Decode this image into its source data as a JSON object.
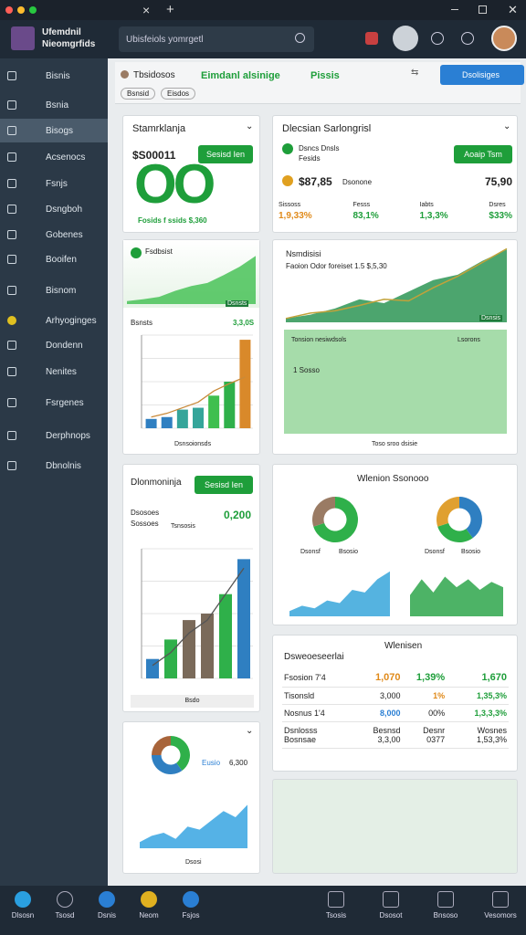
{
  "window": {
    "close": "×",
    "new_tab": "+"
  },
  "header": {
    "app_name_1": "Ufemdnil",
    "app_name_2": "Nieomgrfids",
    "search": "Ubisfeiols yomrgetl"
  },
  "sidebar": {
    "items": [
      "Bisnis",
      "Bsnia",
      "Bisogs",
      "Acsenocs",
      "Fsnjs",
      "Dsngboh",
      "Gobenes",
      "Booifen",
      "Bisnom",
      "Arhyoginges",
      "Dondenn",
      "Nenites",
      "Fsrgenes",
      "Derphnops",
      "Dbnolnis"
    ]
  },
  "toolbar": {
    "tabs": [
      "Tbsidosos",
      "Eimdanl alsinige",
      "Pissis"
    ],
    "chips": [
      "Bsnsid",
      "Eisdos"
    ],
    "button": "Dsolisiges"
  },
  "card_a": {
    "title": "Stamrklanja",
    "amount": "$S00011",
    "button": "Sesisd Ien",
    "big": "OO",
    "footer": "Fosids f ssids $,360"
  },
  "card_b": {
    "title": "Dlecsian Sarlongrisl",
    "line_1": "Dsncs Dnsls",
    "line_1b": "Fesids",
    "button": "Aoaip Tsm",
    "amount": "$87,85",
    "amount_label": "Dsonone",
    "amount_right": "75,90",
    "stats": [
      {
        "label": "Sissoss",
        "value": "1,9,33%"
      },
      {
        "label": "Fesss",
        "value": "83,1%"
      },
      {
        "label": "Iabts",
        "value": "1,3,3%"
      },
      {
        "label": "Dsres",
        "value": "$33%"
      }
    ]
  },
  "card_c": {
    "title": "Fsdbsist",
    "tag": "Dsnsts",
    "label": "Bsnsts",
    "value": "3,3,0S",
    "footer": "Dsnsoionsds"
  },
  "card_d": {
    "title": "Nsmdisisi",
    "subtitle": "Faoion Odor foreiset 1.5 $,5,30",
    "tag": "Dsnsis",
    "panel_title": "Tonsion nesiwdsols",
    "panel_right": "Lsorons",
    "panel_value": "1 Sosso",
    "footer": "Toso sroo dsisie"
  },
  "card_e": {
    "title": "Dlonmoninja",
    "button": "Sesisd Ien",
    "label_1": "Dsosoes",
    "label_2": "Sossoes",
    "label_3": "Tsnsosis",
    "value": "0,200",
    "footer": "Bsdo"
  },
  "card_f": {
    "title": "Wlenion Ssonooo",
    "legend_1": "Dsonsf",
    "legend_2": "Bsosio",
    "legend_3": "Dsonsf",
    "legend_4": "Bsosio"
  },
  "card_g": {
    "title": "Wlenisen",
    "subtitle": "Dsweoeseerlai",
    "rows": [
      [
        "Fsosion 7'4",
        "1,070",
        "1,39%",
        "1,670"
      ],
      [
        "Tisonsld",
        "3,000",
        "1%",
        "1,35,3%"
      ],
      [
        "Nosnus 1'4",
        "8,000",
        "00%",
        "1,3,3,3%"
      ],
      [
        "Dsnlosss Bosnsae",
        "Besnsd 3,3,00",
        "Desnr 0377",
        "Wosnes 1,53,3%"
      ]
    ]
  },
  "card_h": {
    "label": "Eusio",
    "value": "6,300",
    "footer": "Dsosi"
  },
  "bottom_nav": {
    "left": [
      "Dlsosn",
      "Tsosd",
      "Dsnis",
      "Neom",
      "Fsjos"
    ],
    "right": [
      "Tsosis",
      "Dsosot",
      "Bnsoso",
      "Vesomors"
    ]
  },
  "charts": {
    "c_area": {
      "type": "area",
      "values": [
        5,
        8,
        12,
        22,
        30,
        35,
        48,
        62,
        80
      ],
      "color": "#3fbf4f",
      "ylim": [
        0,
        100
      ]
    },
    "c_bars": {
      "type": "bars",
      "values": [
        10,
        12,
        20,
        22,
        35,
        50,
        95
      ],
      "colors": [
        "#2f7fc1",
        "#2f7fc1",
        "#35a59a",
        "#35a59a",
        "#3fbf4f",
        "#2fb04a",
        "#d9892a"
      ],
      "line": [
        12,
        16,
        22,
        28,
        40,
        48,
        55
      ],
      "line_color": "#c98a3a",
      "ylim": [
        0,
        100
      ]
    },
    "d_area": {
      "type": "area",
      "values": [
        5,
        10,
        18,
        30,
        25,
        40,
        55,
        62,
        80,
        95
      ],
      "color": "#1f8f4a",
      "line": [
        5,
        12,
        15,
        22,
        30,
        28,
        45,
        60,
        78,
        96
      ],
      "line_color": "#c2a23a",
      "ylim": [
        0,
        100
      ]
    },
    "e_bars": {
      "type": "bars",
      "values": [
        15,
        30,
        45,
        50,
        65,
        92
      ],
      "colors": [
        "#2f7fc1",
        "#2fb04a",
        "#7a6a5a",
        "#7a6a5a",
        "#2fb04a",
        "#2f7fc1"
      ],
      "line": [
        10,
        20,
        35,
        45,
        65,
        85
      ],
      "line_color": "#555",
      "ylim": [
        0,
        100
      ]
    },
    "f_donut1": {
      "type": "donut",
      "values": [
        70,
        30
      ],
      "colors": [
        "#2fb04a",
        "#9a7b64"
      ]
    },
    "f_donut2": {
      "type": "donut",
      "values": [
        40,
        30,
        30
      ],
      "colors": [
        "#2f7fc1",
        "#2fb04a",
        "#e0a030"
      ]
    },
    "f_area1": {
      "type": "area",
      "values": [
        10,
        20,
        15,
        30,
        25,
        50,
        45,
        70,
        85
      ],
      "color": "#2aa0d8",
      "ylim": [
        0,
        100
      ]
    },
    "f_area2": {
      "type": "area",
      "values": [
        40,
        70,
        45,
        75,
        55,
        70,
        50,
        65,
        55
      ],
      "color": "#20a040",
      "ylim": [
        0,
        100
      ]
    },
    "h_pie": {
      "type": "donut",
      "values": [
        40,
        35,
        25
      ],
      "colors": [
        "#2fb04a",
        "#2f7fc1",
        "#a8643a"
      ]
    },
    "h_area": {
      "type": "area",
      "values": [
        10,
        20,
        25,
        15,
        35,
        30,
        45,
        60,
        50,
        70
      ],
      "color": "#2a9fe0",
      "ylim": [
        0,
        100
      ]
    }
  }
}
